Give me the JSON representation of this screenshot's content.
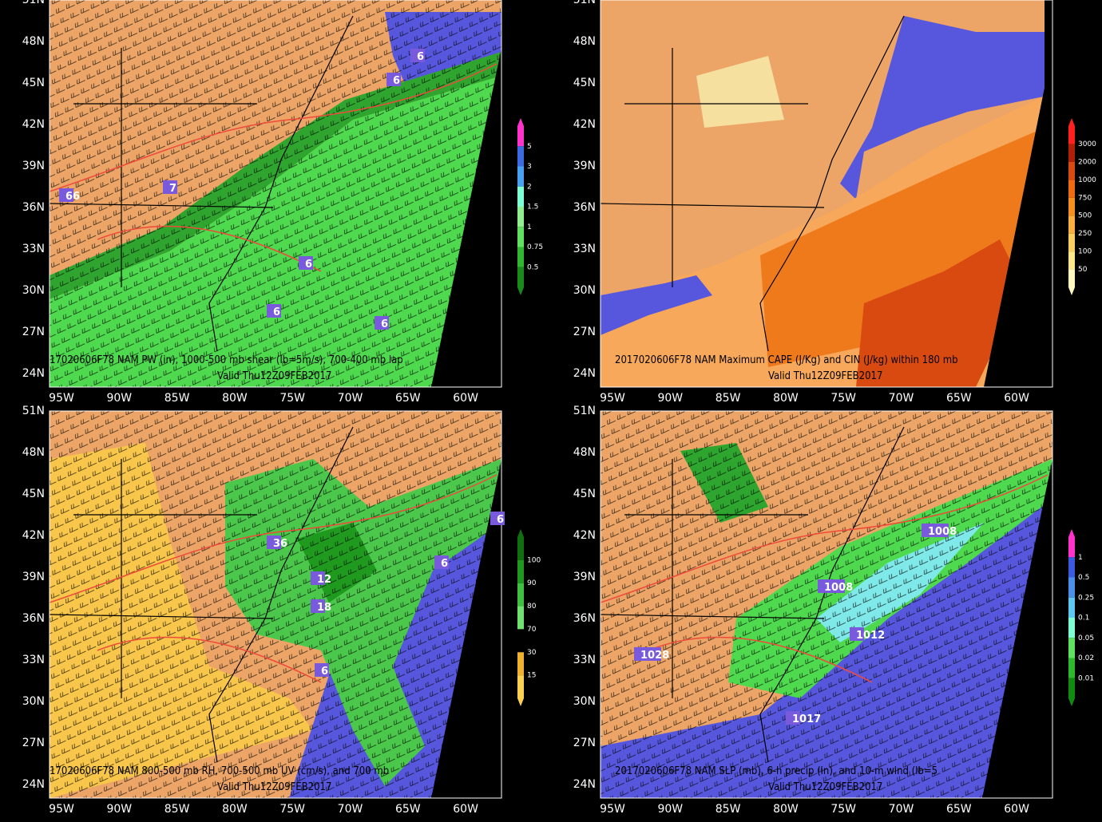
{
  "axes": {
    "lat_labels": [
      "51N",
      "48N",
      "45N",
      "42N",
      "39N",
      "36N",
      "33N",
      "30N",
      "27N",
      "24N"
    ],
    "lon_labels": [
      "95W",
      "90W",
      "85W",
      "80W",
      "75W",
      "70W",
      "65W",
      "60W"
    ]
  },
  "panels": [
    {
      "caption": "17020606F78 NAM PW (in), 1000-500 mb shear (lb=5m/s), 700-400 mb lap",
      "valid": "Valid Thu12Z09FEB2017",
      "colorbar": [
        "5",
        "3",
        "2",
        "1.5",
        "1",
        "0.75",
        "0.5"
      ],
      "contour_labels": [
        "6",
        "6",
        "7",
        "66",
        "6",
        "6",
        "6"
      ]
    },
    {
      "caption": "2017020606F78 NAM Maximum CAPE (J/Kg) and CIN (J/kg) within 180 mb",
      "valid": "Valid Thu12Z09FEB2017",
      "colorbar": [
        "3000",
        "2000",
        "1000",
        "750",
        "500",
        "250",
        "100",
        "50"
      ],
      "contour_labels": []
    },
    {
      "caption": "17020606F78 NAM 800-500 mb RH, 700-500 mb UV (cm/s), and 700 mb",
      "valid": "Valid Thu12Z09FEB2017",
      "colorbar": [
        "100",
        "90",
        "80",
        "70",
        "30",
        "15"
      ],
      "contour_labels": [
        "12",
        "18",
        "6",
        "6",
        "36",
        "6"
      ]
    },
    {
      "caption": "2017020606F78 NAM SLP (mb), 6-h precip (in), and 10-m wind (lb=5",
      "valid": "Valid Thu12Z09FEB2017",
      "colorbar": [
        "1",
        "0.5",
        "0.25",
        "0.1",
        "0.05",
        "0.02",
        "0.01"
      ],
      "contour_labels": [
        "1008",
        "1008",
        "1028",
        "1012",
        "1017"
      ]
    }
  ]
}
